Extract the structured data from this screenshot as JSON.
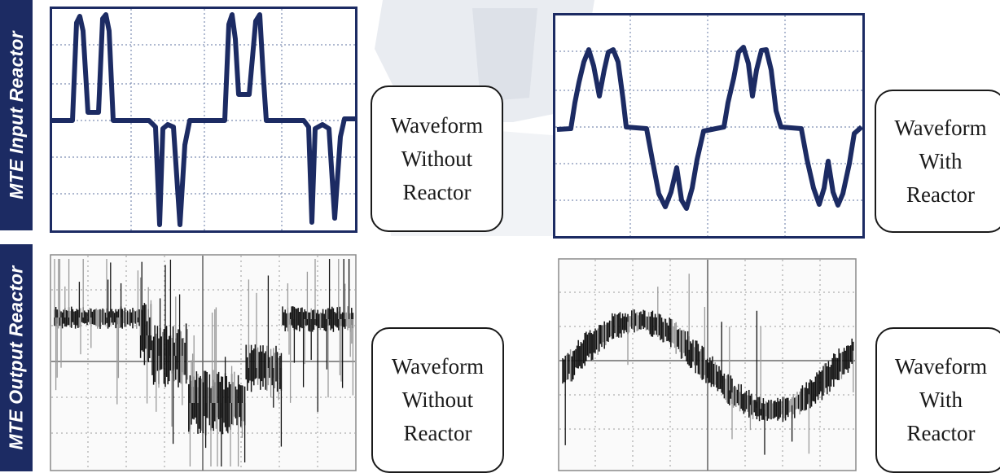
{
  "labels": {
    "input_reactor": "MTE Input Reactor",
    "output_reactor": "MTE Output Reactor"
  },
  "captions": {
    "input_without": [
      "Waveform",
      "Without",
      "Reactor"
    ],
    "input_with": [
      "Waveform",
      "With",
      "Reactor"
    ],
    "output_without": [
      "Waveform",
      "Without",
      "Reactor"
    ],
    "output_with": [
      "Waveform",
      "With",
      "Reactor"
    ]
  },
  "colors": {
    "label_bg": "#1c2b63",
    "trace": "#1c2b63",
    "grid": "#7f8fb5",
    "noise_dark": "#121212",
    "noise_light": "#9a9a9a"
  }
}
